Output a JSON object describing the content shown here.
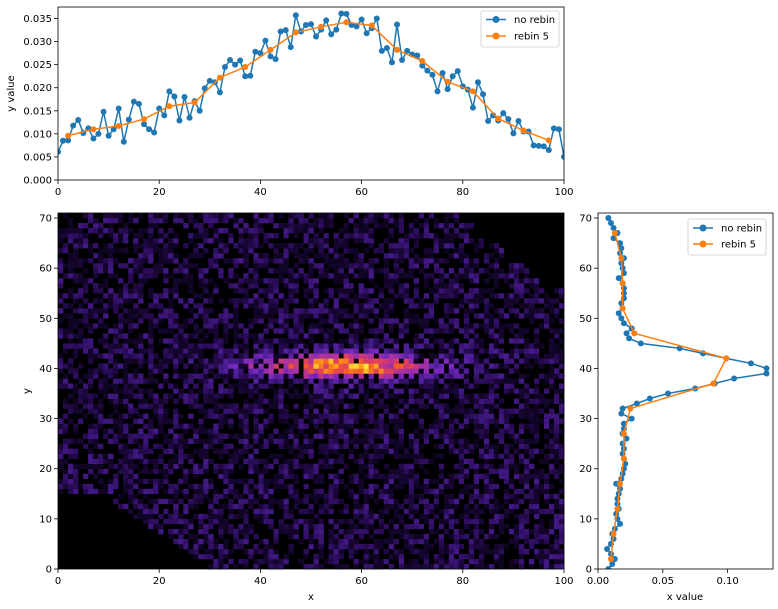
{
  "chart_data": [
    {
      "type": "line",
      "xlabel": "",
      "ylabel": "y value",
      "xlim": [
        0,
        100
      ],
      "ylim": [
        0,
        0.0375
      ],
      "xticks": [
        "0",
        "20",
        "40",
        "60",
        "80",
        "100"
      ],
      "yticks": [
        "0.000",
        "0.005",
        "0.010",
        "0.015",
        "0.020",
        "0.025",
        "0.030",
        "0.035"
      ],
      "legend_position": "top-right",
      "series": [
        {
          "name": "no rebin",
          "color": "#1f77b4",
          "x": [
            0,
            1,
            2,
            3,
            4,
            5,
            6,
            7,
            8,
            9,
            10,
            11,
            12,
            13,
            14,
            15,
            16,
            17,
            18,
            19,
            20,
            21,
            22,
            23,
            24,
            25,
            26,
            27,
            28,
            29,
            30,
            31,
            32,
            33,
            34,
            35,
            36,
            37,
            38,
            39,
            40,
            41,
            42,
            43,
            44,
            45,
            46,
            47,
            48,
            49,
            50,
            51,
            52,
            53,
            54,
            55,
            56,
            57,
            58,
            59,
            60,
            61,
            62,
            63,
            64,
            65,
            66,
            67,
            68,
            69,
            70,
            71,
            72,
            73,
            74,
            75,
            76,
            77,
            78,
            79,
            80,
            81,
            82,
            83,
            84,
            85,
            86,
            87,
            88,
            89,
            90,
            91,
            92,
            93,
            94,
            95,
            96,
            97,
            98,
            99,
            100
          ],
          "y": [
            0.0061,
            0.0085,
            0.0086,
            0.0118,
            0.013,
            0.0102,
            0.0112,
            0.009,
            0.01,
            0.0148,
            0.0096,
            0.011,
            0.0155,
            0.0083,
            0.0131,
            0.017,
            0.0165,
            0.0121,
            0.011,
            0.0103,
            0.0155,
            0.014,
            0.0192,
            0.0181,
            0.0129,
            0.018,
            0.0135,
            0.0171,
            0.015,
            0.0199,
            0.0215,
            0.0212,
            0.019,
            0.0245,
            0.026,
            0.025,
            0.0259,
            0.0225,
            0.0226,
            0.0278,
            0.0275,
            0.0302,
            0.0268,
            0.0262,
            0.0322,
            0.0325,
            0.0288,
            0.0357,
            0.0322,
            0.0336,
            0.0338,
            0.0311,
            0.0326,
            0.0346,
            0.0316,
            0.0326,
            0.0361,
            0.036,
            0.0336,
            0.0333,
            0.0348,
            0.0318,
            0.0329,
            0.035,
            0.028,
            0.0286,
            0.0255,
            0.0337,
            0.026,
            0.028,
            0.0272,
            0.027,
            0.0248,
            0.0237,
            0.0228,
            0.0192,
            0.0232,
            0.0197,
            0.0225,
            0.0236,
            0.0203,
            0.0196,
            0.0157,
            0.0212,
            0.0186,
            0.0128,
            0.014,
            0.0129,
            0.0145,
            0.0132,
            0.0101,
            0.0128,
            0.0105,
            0.0105,
            0.0075,
            0.0074,
            0.0073,
            0.0065,
            0.0112,
            0.011,
            0.005
          ]
        },
        {
          "name": "rebin 5",
          "color": "#ff7f0e",
          "x": [
            2,
            7,
            12,
            17,
            22,
            27,
            32,
            37,
            42,
            47,
            52,
            57,
            62,
            67,
            72,
            77,
            82,
            87,
            92,
            97
          ],
          "y": [
            0.0096,
            0.011,
            0.0117,
            0.0132,
            0.016,
            0.0168,
            0.0222,
            0.0245,
            0.0282,
            0.032,
            0.0332,
            0.0342,
            0.0335,
            0.0282,
            0.0258,
            0.0213,
            0.0192,
            0.0133,
            0.0107,
            0.0086
          ]
        }
      ]
    },
    {
      "type": "heatmap",
      "xlabel": "x",
      "ylabel": "y",
      "xlim": [
        0,
        100
      ],
      "ylim": [
        0,
        71
      ],
      "xticks": [
        "0",
        "20",
        "40",
        "60",
        "80",
        "100"
      ],
      "yticks": [
        "0",
        "10",
        "20",
        "30",
        "40",
        "50",
        "60",
        "70"
      ],
      "colormap": "inferno-like (black to purple to orange to yellow)",
      "description_of_structure": "bright band centered near y=40 spanning x 30-85, peak near x=55-60"
    },
    {
      "type": "line",
      "xlabel": "x value",
      "ylabel": "",
      "xlim": [
        0,
        0.135
      ],
      "ylim": [
        0,
        71
      ],
      "xticks": [
        "0.00",
        "0.05",
        "0.10"
      ],
      "yticks": [
        "0",
        "10",
        "20",
        "30",
        "40",
        "50",
        "60",
        "70"
      ],
      "legend_position": "top-right",
      "series": [
        {
          "name": "no rebin",
          "color": "#1f77b4",
          "y": [
            0,
            1,
            2,
            3,
            4,
            5,
            6,
            7,
            8,
            9,
            10,
            11,
            12,
            13,
            14,
            15,
            16,
            17,
            18,
            19,
            20,
            21,
            22,
            23,
            24,
            25,
            26,
            27,
            28,
            29,
            30,
            31,
            32,
            33,
            34,
            35,
            36,
            37,
            38,
            39,
            40,
            41,
            42,
            43,
            44,
            45,
            46,
            47,
            48,
            49,
            50,
            51,
            52,
            53,
            54,
            55,
            56,
            57,
            58,
            59,
            60,
            61,
            62,
            63,
            64,
            65,
            66,
            67,
            68,
            69,
            70
          ],
          "x": [
            0.008,
            0.011,
            0.013,
            0.01,
            0.007,
            0.01,
            0.012,
            0.011,
            0.013,
            0.017,
            0.015,
            0.014,
            0.016,
            0.015,
            0.015,
            0.016,
            0.017,
            0.014,
            0.018,
            0.019,
            0.02,
            0.021,
            0.02,
            0.019,
            0.02,
            0.019,
            0.022,
            0.019,
            0.02,
            0.02,
            0.026,
            0.018,
            0.019,
            0.03,
            0.04,
            0.054,
            0.075,
            0.09,
            0.105,
            0.13,
            0.13,
            0.118,
            0.099,
            0.081,
            0.063,
            0.033,
            0.024,
            0.022,
            0.026,
            0.02,
            0.018,
            0.016,
            0.019,
            0.018,
            0.02,
            0.02,
            0.02,
            0.019,
            0.016,
            0.02,
            0.019,
            0.018,
            0.02,
            0.017,
            0.018,
            0.017,
            0.012,
            0.015,
            0.012,
            0.01,
            0.008
          ]
        },
        {
          "name": "rebin 5",
          "color": "#ff7f0e",
          "y": [
            2,
            7,
            12,
            17,
            22,
            27,
            32,
            37,
            42,
            47,
            52,
            57,
            62,
            67
          ],
          "x": [
            0.01,
            0.012,
            0.015,
            0.017,
            0.02,
            0.02,
            0.025,
            0.089,
            0.099,
            0.028,
            0.019,
            0.019,
            0.018,
            0.013
          ]
        }
      ]
    }
  ]
}
